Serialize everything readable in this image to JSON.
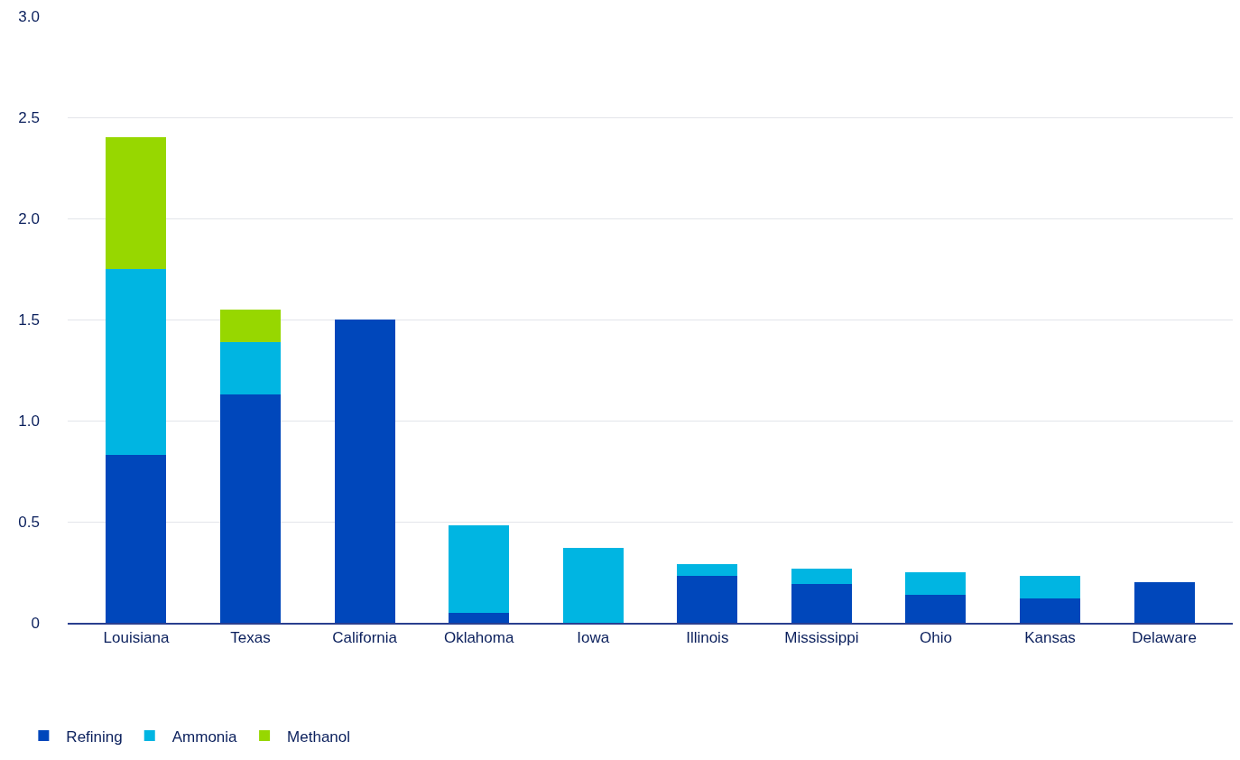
{
  "chart_data": {
    "type": "bar",
    "stacked": true,
    "categories": [
      "Louisiana",
      "Texas",
      "California",
      "Oklahoma",
      "Iowa",
      "Illinois",
      "Mississippi",
      "Ohio",
      "Kansas",
      "Delaware"
    ],
    "series": [
      {
        "name": "Refining",
        "color": "#0047bb",
        "values": [
          0.83,
          1.13,
          1.5,
          0.05,
          0,
          0.23,
          0.19,
          0.14,
          0.12,
          0.2
        ]
      },
      {
        "name": "Ammonia",
        "color": "#00b5e2",
        "values": [
          0.92,
          0.26,
          0,
          0.43,
          0.37,
          0.06,
          0.08,
          0.11,
          0.11,
          0
        ]
      },
      {
        "name": "Methanol",
        "color": "#97d700",
        "values": [
          0.65,
          0.16,
          0,
          0,
          0,
          0,
          0,
          0,
          0,
          0
        ]
      }
    ],
    "ylim": [
      0,
      3
    ],
    "yticks": [
      0,
      0.5,
      {
        "value": 1,
        "label": "1.0"
      },
      1.5,
      {
        "value": 2,
        "label": "2.0"
      },
      2.5,
      {
        "value": 3,
        "label": "3.0"
      }
    ],
    "grid": "y",
    "legend": "bottom left"
  }
}
